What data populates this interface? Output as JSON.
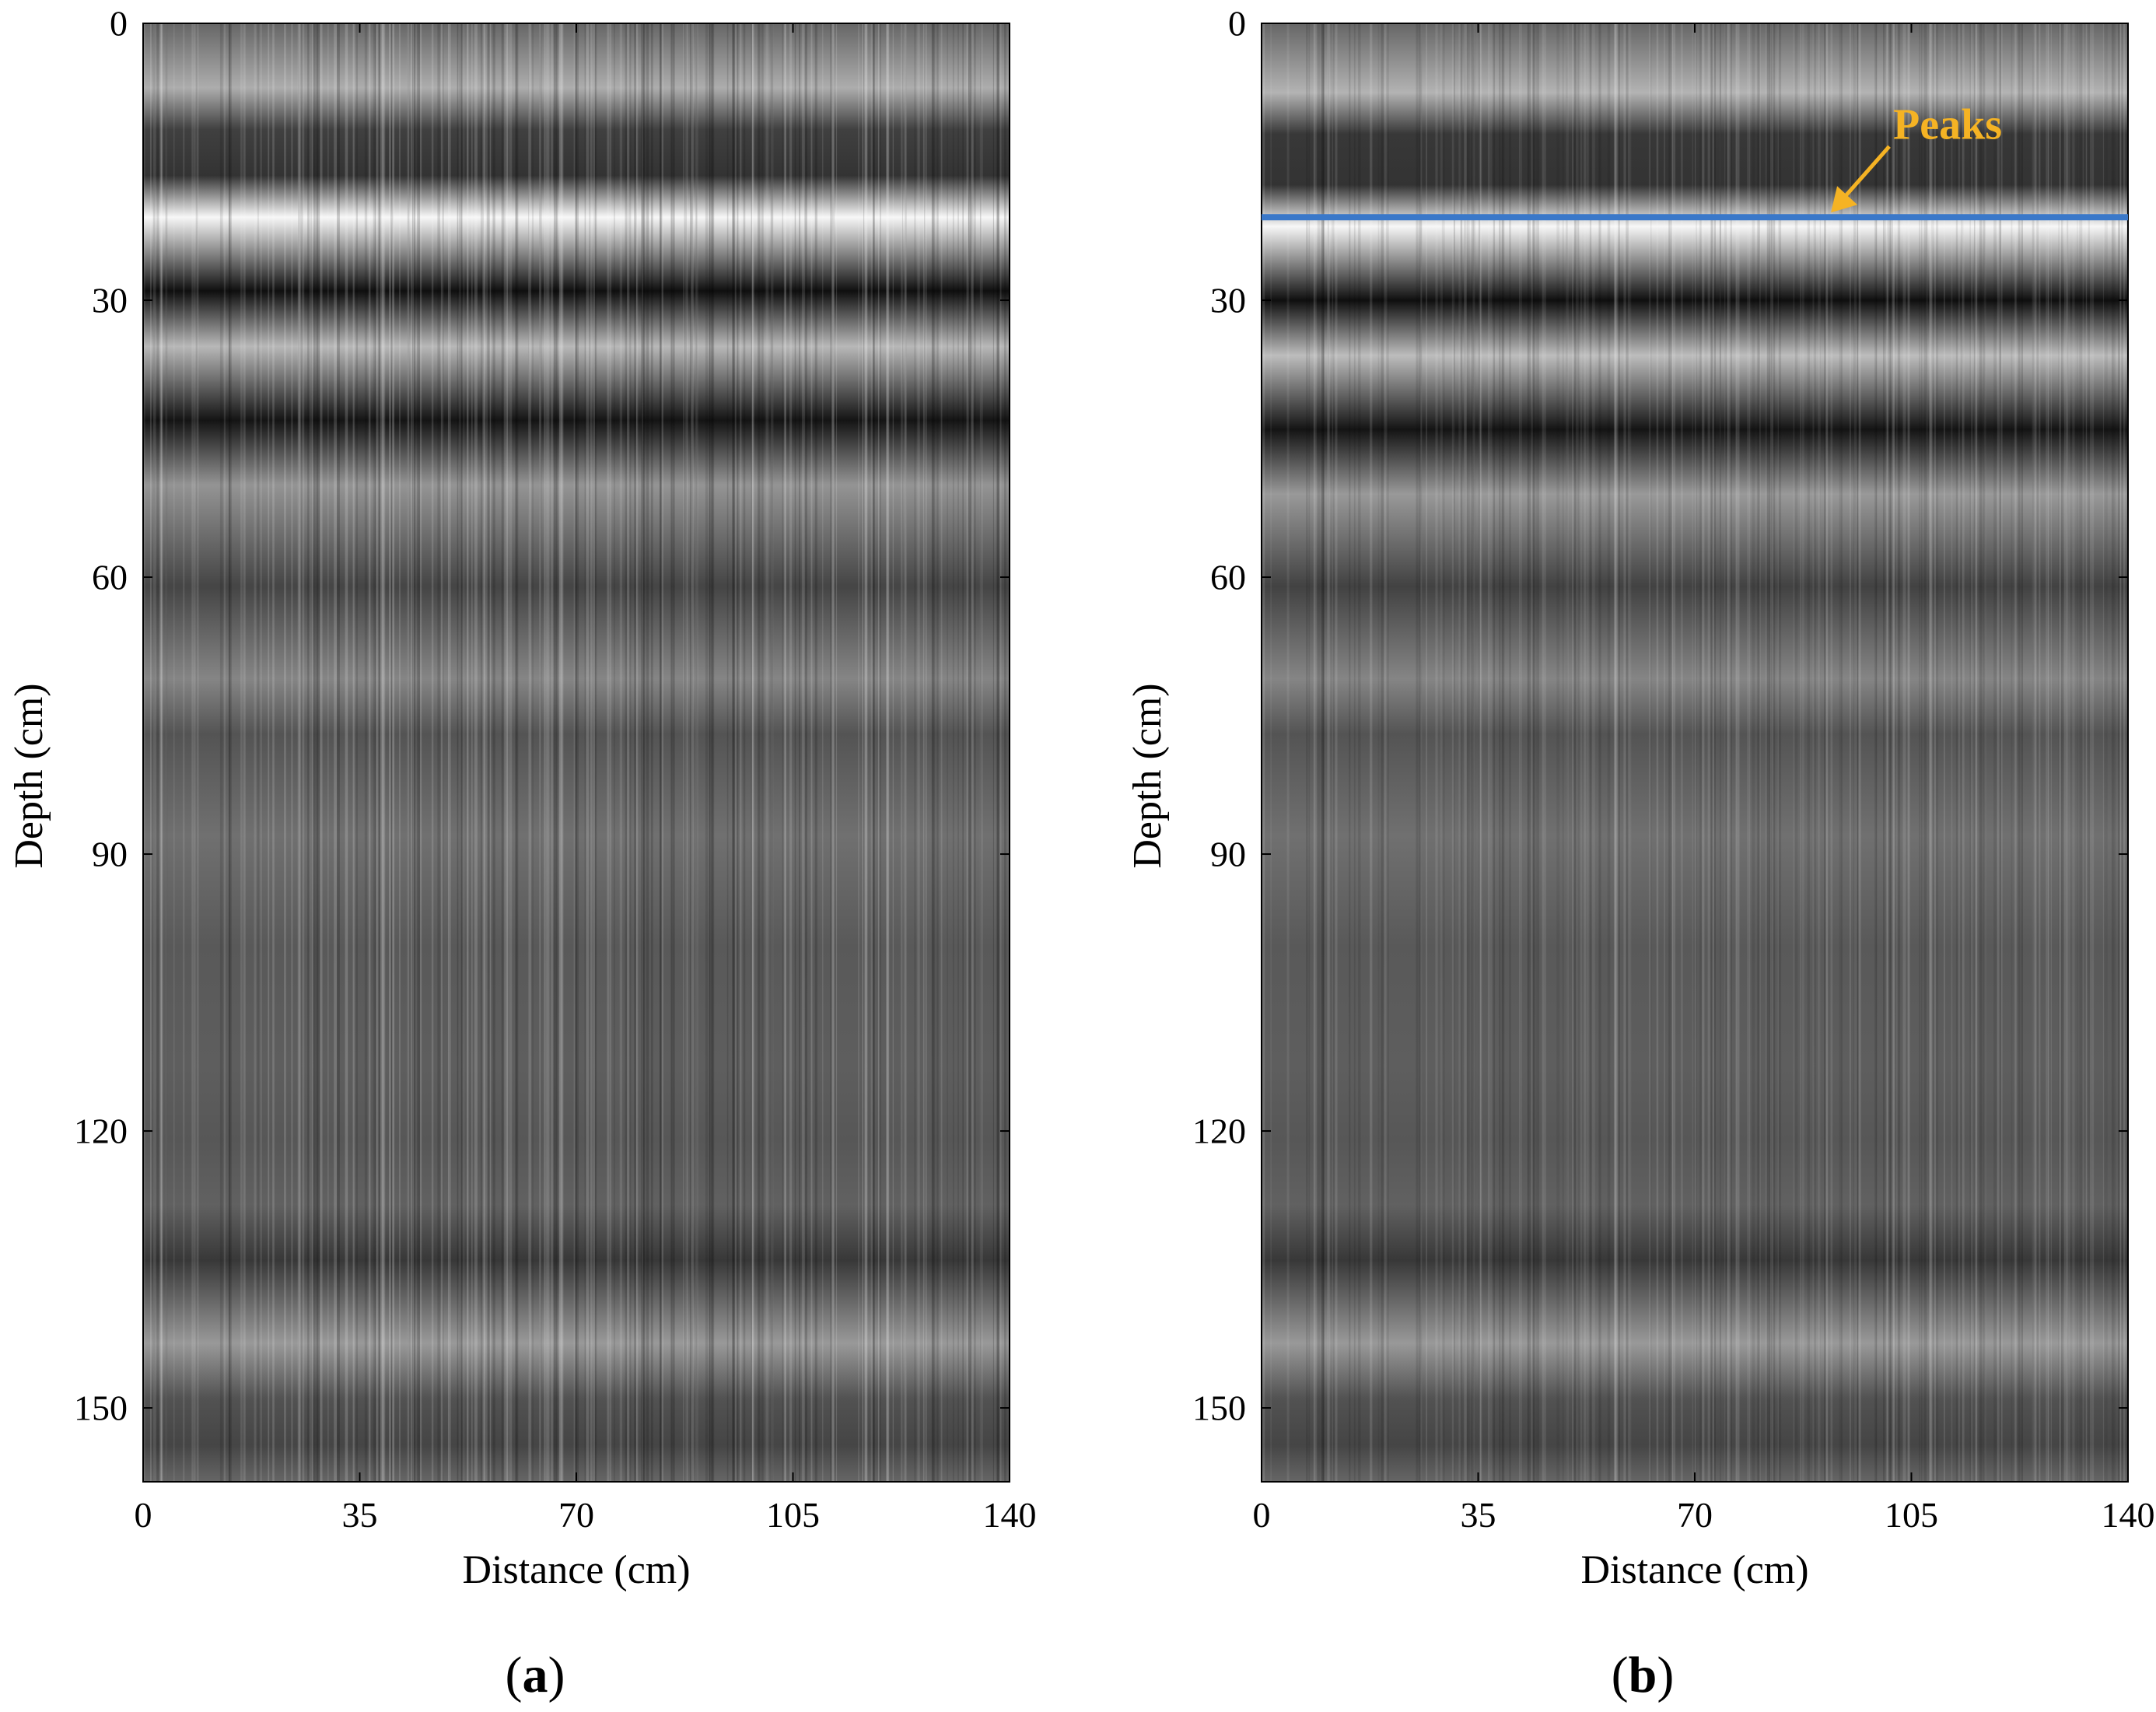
{
  "chart_data": [
    {
      "type": "heatmap",
      "panel_label": "a",
      "xlabel": "Distance (cm)",
      "ylabel": "Depth (cm)",
      "xlim": [
        0,
        140
      ],
      "ylim": [
        0,
        158
      ],
      "y_inverted": true,
      "xticks": [
        0,
        35,
        70,
        105,
        140
      ],
      "yticks": [
        0,
        30,
        60,
        90,
        120,
        150
      ],
      "colormap": "gray",
      "grid": false,
      "bands": [
        {
          "depth": 7,
          "level": 0.68
        },
        {
          "depth": 11.5,
          "level": 0.25
        },
        {
          "depth": 16.5,
          "level": 0.2
        },
        {
          "depth": 21,
          "level": 0.97
        },
        {
          "depth": 29,
          "level": 0.06
        },
        {
          "depth": 35,
          "level": 0.72
        },
        {
          "depth": 43,
          "level": 0.08
        },
        {
          "depth": 50,
          "level": 0.58
        },
        {
          "depth": 61,
          "level": 0.27
        },
        {
          "depth": 71,
          "level": 0.52
        },
        {
          "depth": 77,
          "level": 0.33
        },
        {
          "depth": 88,
          "level": 0.44
        },
        {
          "depth": 100,
          "level": 0.35
        },
        {
          "depth": 113,
          "level": 0.37
        },
        {
          "depth": 121,
          "level": 0.34
        },
        {
          "depth": 128,
          "level": 0.38
        },
        {
          "depth": 134,
          "level": 0.22
        },
        {
          "depth": 143,
          "level": 0.6
        },
        {
          "depth": 149,
          "level": 0.32
        },
        {
          "depth": 154,
          "level": 0.27
        }
      ]
    },
    {
      "type": "heatmap",
      "panel_label": "b",
      "xlabel": "Distance (cm)",
      "ylabel": "Depth (cm)",
      "xlim": [
        0,
        140
      ],
      "ylim": [
        0,
        158
      ],
      "y_inverted": true,
      "xticks": [
        0,
        35,
        70,
        105,
        140
      ],
      "yticks": [
        0,
        30,
        60,
        90,
        120,
        150
      ],
      "colormap": "gray",
      "grid": false,
      "bands": [
        {
          "depth": 7.5,
          "level": 0.7
        },
        {
          "depth": 12,
          "level": 0.22
        },
        {
          "depth": 17.5,
          "level": 0.2
        },
        {
          "depth": 22,
          "level": 0.97
        },
        {
          "depth": 30,
          "level": 0.06
        },
        {
          "depth": 36,
          "level": 0.74
        },
        {
          "depth": 44,
          "level": 0.08
        },
        {
          "depth": 51,
          "level": 0.6
        },
        {
          "depth": 61,
          "level": 0.26
        },
        {
          "depth": 71,
          "level": 0.52
        },
        {
          "depth": 77,
          "level": 0.33
        },
        {
          "depth": 88,
          "level": 0.44
        },
        {
          "depth": 100,
          "level": 0.35
        },
        {
          "depth": 113,
          "level": 0.37
        },
        {
          "depth": 121,
          "level": 0.34
        },
        {
          "depth": 128,
          "level": 0.38
        },
        {
          "depth": 134,
          "level": 0.22
        },
        {
          "depth": 143,
          "level": 0.6
        },
        {
          "depth": 149,
          "level": 0.32
        },
        {
          "depth": 154,
          "level": 0.27
        }
      ],
      "lines": [
        {
          "kind": "horizontal",
          "depth": 21,
          "color": "#3a78c9"
        }
      ],
      "annotations": [
        {
          "text": "Peaks",
          "color": "#f5b324",
          "points_to": {
            "x": 92,
            "depth": 20.5
          }
        }
      ]
    }
  ]
}
